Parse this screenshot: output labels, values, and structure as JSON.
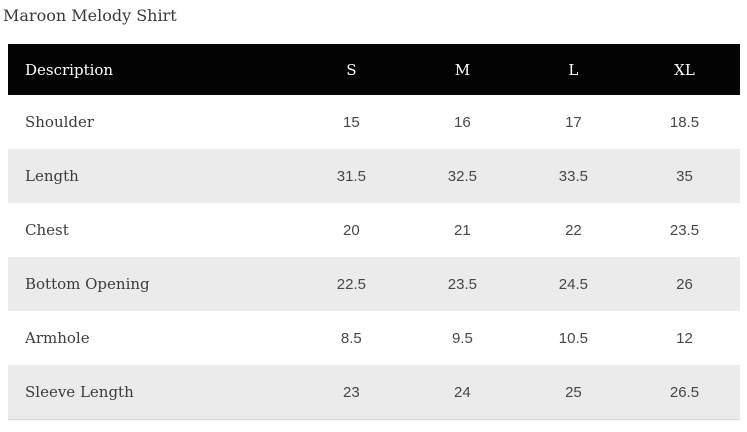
{
  "page": {
    "title": "Maroon Melody Shirt"
  },
  "size_chart": {
    "columns": [
      "Description",
      "S",
      "M",
      "L",
      "XL"
    ],
    "rows": [
      {
        "label": "Shoulder",
        "values": [
          "15",
          "16",
          "17",
          "18.5"
        ]
      },
      {
        "label": "Length",
        "values": [
          "31.5",
          "32.5",
          "33.5",
          "35"
        ]
      },
      {
        "label": "Chest",
        "values": [
          "20",
          "21",
          "22",
          "23.5"
        ]
      },
      {
        "label": "Bottom Opening",
        "values": [
          "22.5",
          "23.5",
          "24.5",
          "26"
        ]
      },
      {
        "label": "Armhole",
        "values": [
          "8.5",
          "9.5",
          "10.5",
          "12"
        ]
      },
      {
        "label": "Sleeve Length",
        "values": [
          "23",
          "24",
          "25",
          "26.5"
        ]
      }
    ],
    "colors": {
      "page_bg": "#ffffff",
      "header_bg": "#030303",
      "header_text": "#ffffff",
      "row_bg": "#ffffff",
      "row_alt_bg": "#ebebeb",
      "title_text": "#3a3a3a",
      "label_text": "#3c3c3c",
      "value_text": "#474747",
      "table_border": "#d8d8d8"
    }
  }
}
